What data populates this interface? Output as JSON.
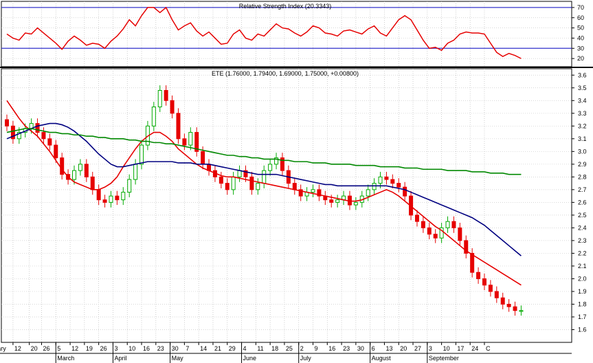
{
  "chart_data": [
    {
      "type": "line",
      "title": "Relative Strength Index (20.3343)",
      "ylim": [
        12,
        76
      ],
      "yticks": [
        70,
        60,
        50,
        40,
        30,
        20
      ],
      "grid": true,
      "reference_lines": [
        30,
        70
      ],
      "series": [
        {
          "color": "#e60000",
          "x_days": [
            0,
            3,
            6,
            9,
            12,
            15,
            18,
            21,
            24,
            27,
            30,
            33,
            36,
            39,
            42,
            45,
            48,
            51,
            54,
            57,
            60,
            63,
            66,
            69,
            72,
            75,
            78,
            81,
            84,
            87,
            90,
            93,
            96,
            99,
            102,
            105,
            108,
            111,
            114,
            117,
            120,
            123,
            126,
            129,
            132,
            135,
            138,
            141,
            144,
            147,
            150,
            153,
            156,
            159,
            162,
            165,
            168,
            171,
            174,
            177,
            180,
            183,
            186,
            189,
            192,
            195,
            198,
            201,
            204,
            207,
            210,
            213,
            216,
            219,
            222,
            225,
            228,
            231,
            234,
            237,
            240,
            243,
            246,
            249,
            252
          ],
          "values": [
            44,
            40,
            38,
            45,
            44,
            50,
            45,
            40,
            35,
            29,
            37,
            42,
            38,
            33,
            35,
            34,
            30,
            37,
            42,
            49,
            58,
            52,
            62,
            70,
            70,
            65,
            70,
            58,
            48,
            52,
            55,
            47,
            42,
            46,
            40,
            34,
            35,
            44,
            48,
            40,
            38,
            44,
            42,
            48,
            54,
            50,
            49,
            45,
            42,
            46,
            52,
            50,
            45,
            44,
            42,
            47,
            48,
            46,
            44,
            49,
            52,
            45,
            42,
            50,
            58,
            62,
            58,
            48,
            38,
            30,
            31,
            28,
            35,
            38,
            44,
            46,
            45,
            45,
            44,
            35,
            26,
            22,
            25,
            23,
            20
          ]
        }
      ]
    },
    {
      "type": "candlestick",
      "title": "ETE (1.76000, 1.79400, 1.69000, 1.75000, +0.00800)",
      "ylim": [
        1.5,
        3.65
      ],
      "yticks": [
        "3.6",
        "3.5",
        "3.4",
        "3.3",
        "3.2",
        "3.1",
        "3.0",
        "2.9",
        "2.8",
        "2.7",
        "2.6",
        "2.5",
        "2.4",
        "2.3",
        "2.2",
        "2.1",
        "2.0",
        "1.9",
        "1.8",
        "1.7",
        "1.6"
      ],
      "grid": true,
      "up_color": "#00aa00",
      "down_color": "#e60000",
      "x_days": [
        0,
        3,
        6,
        9,
        12,
        15,
        18,
        21,
        24,
        27,
        30,
        33,
        36,
        39,
        42,
        45,
        48,
        51,
        54,
        57,
        60,
        63,
        66,
        69,
        72,
        75,
        78,
        81,
        84,
        87,
        90,
        93,
        96,
        99,
        102,
        105,
        108,
        111,
        114,
        117,
        120,
        123,
        126,
        129,
        132,
        135,
        138,
        141,
        144,
        147,
        150,
        153,
        156,
        159,
        162,
        165,
        168,
        171,
        174,
        177,
        180,
        183,
        186,
        189,
        192,
        195,
        198,
        201,
        204,
        207,
        210,
        213,
        216,
        219,
        222,
        225,
        228,
        231,
        234,
        237,
        240,
        243,
        246,
        249,
        252
      ],
      "close": [
        3.2,
        3.1,
        3.15,
        3.18,
        3.22,
        3.15,
        3.1,
        3.05,
        2.95,
        2.82,
        2.78,
        2.85,
        2.9,
        2.8,
        2.7,
        2.62,
        2.6,
        2.65,
        2.62,
        2.68,
        2.78,
        2.9,
        3.05,
        3.2,
        3.35,
        3.48,
        3.4,
        3.3,
        3.1,
        3.05,
        3.15,
        3.0,
        2.9,
        2.85,
        2.8,
        2.75,
        2.7,
        2.8,
        2.85,
        2.8,
        2.7,
        2.75,
        2.85,
        2.9,
        2.95,
        2.85,
        2.75,
        2.7,
        2.65,
        2.68,
        2.7,
        2.65,
        2.62,
        2.6,
        2.62,
        2.65,
        2.58,
        2.6,
        2.65,
        2.7,
        2.75,
        2.8,
        2.78,
        2.75,
        2.72,
        2.65,
        2.5,
        2.45,
        2.4,
        2.35,
        2.32,
        2.4,
        2.45,
        2.4,
        2.3,
        2.2,
        2.05,
        2.0,
        1.95,
        1.9,
        1.85,
        1.8,
        1.78,
        1.75,
        1.75
      ],
      "series": [
        {
          "color": "#e60000",
          "values": [
            3.4,
            3.33,
            3.26,
            3.2,
            3.16,
            3.12,
            3.06,
            3.0,
            2.93,
            2.86,
            2.8,
            2.76,
            2.74,
            2.72,
            2.7,
            2.7,
            2.72,
            2.75,
            2.8,
            2.88,
            2.95,
            3.02,
            3.08,
            3.12,
            3.15,
            3.15,
            3.12,
            3.08,
            3.02,
            2.98,
            2.94,
            2.9,
            2.87,
            2.85,
            2.83,
            2.81,
            2.8,
            2.8,
            2.79,
            2.78,
            2.77,
            2.76,
            2.75,
            2.74,
            2.73,
            2.72,
            2.71,
            2.7,
            2.69,
            2.68,
            2.67,
            2.66,
            2.65,
            2.64,
            2.63,
            2.62,
            2.61,
            2.61,
            2.62,
            2.64,
            2.66,
            2.68,
            2.7,
            2.68,
            2.65,
            2.61,
            2.57,
            2.53,
            2.49,
            2.45,
            2.41,
            2.38,
            2.34,
            2.3,
            2.26,
            2.22,
            2.19,
            2.16,
            2.13,
            2.1,
            2.07,
            2.04,
            2.01,
            1.98,
            1.95
          ]
        },
        {
          "color": "#000080",
          "values": [
            3.1,
            3.12,
            3.14,
            3.16,
            3.18,
            3.2,
            3.21,
            3.22,
            3.22,
            3.21,
            3.19,
            3.16,
            3.12,
            3.08,
            3.03,
            2.98,
            2.94,
            2.9,
            2.88,
            2.88,
            2.89,
            2.9,
            2.91,
            2.92,
            2.92,
            2.92,
            2.92,
            2.92,
            2.91,
            2.91,
            2.91,
            2.9,
            2.9,
            2.9,
            2.89,
            2.88,
            2.87,
            2.86,
            2.85,
            2.84,
            2.83,
            2.82,
            2.82,
            2.82,
            2.82,
            2.81,
            2.8,
            2.79,
            2.78,
            2.77,
            2.76,
            2.75,
            2.74,
            2.74,
            2.73,
            2.73,
            2.73,
            2.73,
            2.73,
            2.73,
            2.73,
            2.73,
            2.73,
            2.72,
            2.71,
            2.7,
            2.68,
            2.66,
            2.64,
            2.62,
            2.6,
            2.58,
            2.56,
            2.54,
            2.52,
            2.5,
            2.48,
            2.45,
            2.42,
            2.38,
            2.34,
            2.3,
            2.26,
            2.22,
            2.18
          ]
        },
        {
          "color": "#008800",
          "values": [
            3.15,
            3.16,
            3.17,
            3.18,
            3.18,
            3.17,
            3.16,
            3.15,
            3.15,
            3.14,
            3.14,
            3.13,
            3.13,
            3.12,
            3.12,
            3.11,
            3.11,
            3.1,
            3.1,
            3.1,
            3.09,
            3.09,
            3.08,
            3.08,
            3.07,
            3.07,
            3.06,
            3.06,
            3.05,
            3.04,
            3.03,
            3.02,
            3.01,
            3.0,
            2.99,
            2.98,
            2.97,
            2.97,
            2.96,
            2.96,
            2.95,
            2.95,
            2.94,
            2.94,
            2.94,
            2.93,
            2.93,
            2.92,
            2.92,
            2.92,
            2.91,
            2.91,
            2.91,
            2.9,
            2.9,
            2.9,
            2.9,
            2.89,
            2.89,
            2.89,
            2.89,
            2.88,
            2.88,
            2.88,
            2.88,
            2.87,
            2.87,
            2.87,
            2.86,
            2.86,
            2.86,
            2.86,
            2.85,
            2.85,
            2.85,
            2.85,
            2.84,
            2.84,
            2.84,
            2.83,
            2.83,
            2.83,
            2.82,
            2.82,
            2.82
          ]
        }
      ]
    }
  ],
  "x_axis": {
    "days_max": 276,
    "ticks": [
      {
        "day": -7,
        "label": "uary"
      },
      {
        "day": 3,
        "label": "12"
      },
      {
        "day": 11,
        "label": "20"
      },
      {
        "day": 17,
        "label": "26"
      },
      {
        "day": 24,
        "label": "5"
      },
      {
        "day": 31,
        "label": "12"
      },
      {
        "day": 38,
        "label": "19"
      },
      {
        "day": 45,
        "label": "26"
      },
      {
        "day": 52,
        "label": "3"
      },
      {
        "day": 59,
        "label": "10"
      },
      {
        "day": 66,
        "label": "16"
      },
      {
        "day": 73,
        "label": "23"
      },
      {
        "day": 80,
        "label": "30"
      },
      {
        "day": 87,
        "label": "7"
      },
      {
        "day": 94,
        "label": "14"
      },
      {
        "day": 101,
        "label": "21"
      },
      {
        "day": 108,
        "label": "29"
      },
      {
        "day": 115,
        "label": "4"
      },
      {
        "day": 122,
        "label": "11"
      },
      {
        "day": 129,
        "label": "18"
      },
      {
        "day": 136,
        "label": "25"
      },
      {
        "day": 143,
        "label": "2"
      },
      {
        "day": 150,
        "label": "9"
      },
      {
        "day": 157,
        "label": "16"
      },
      {
        "day": 164,
        "label": "23"
      },
      {
        "day": 171,
        "label": "30"
      },
      {
        "day": 178,
        "label": "6"
      },
      {
        "day": 185,
        "label": "13"
      },
      {
        "day": 192,
        "label": "20"
      },
      {
        "day": 199,
        "label": "27"
      },
      {
        "day": 206,
        "label": "3"
      },
      {
        "day": 213,
        "label": "10"
      },
      {
        "day": 220,
        "label": "17"
      },
      {
        "day": 227,
        "label": "24"
      },
      {
        "day": 234,
        "label": "C"
      }
    ],
    "months": [
      {
        "day": 24,
        "label": "March"
      },
      {
        "day": 52,
        "label": "April"
      },
      {
        "day": 80,
        "label": "May"
      },
      {
        "day": 115,
        "label": "June"
      },
      {
        "day": 143,
        "label": "July"
      },
      {
        "day": 178,
        "label": "August"
      },
      {
        "day": 206,
        "label": "September"
      }
    ]
  }
}
